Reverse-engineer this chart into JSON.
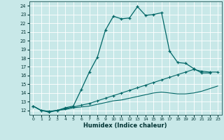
{
  "xlabel": "Humidex (Indice chaleur)",
  "background_color": "#c8e8e8",
  "grid_color": "#ffffff",
  "line_color": "#006666",
  "xlim": [
    -0.5,
    23.5
  ],
  "ylim": [
    11.5,
    24.5
  ],
  "yticks": [
    12,
    13,
    14,
    15,
    16,
    17,
    18,
    19,
    20,
    21,
    22,
    23,
    24
  ],
  "xticks": [
    0,
    1,
    2,
    3,
    4,
    5,
    6,
    7,
    8,
    9,
    10,
    11,
    12,
    13,
    14,
    15,
    16,
    17,
    18,
    19,
    20,
    21,
    22,
    23
  ],
  "line1_x": [
    0,
    1,
    2,
    3,
    4,
    5,
    6,
    7,
    8,
    9,
    10,
    11,
    12,
    13,
    14,
    15,
    16,
    17,
    18,
    19,
    20,
    21,
    22
  ],
  "line1_y": [
    12.5,
    12.0,
    11.8,
    12.0,
    12.3,
    12.5,
    14.4,
    16.4,
    18.1,
    21.2,
    22.8,
    22.5,
    22.6,
    23.9,
    22.9,
    23.0,
    23.2,
    18.8,
    17.5,
    17.4,
    16.8,
    16.3,
    16.3
  ],
  "line2_x": [
    0,
    1,
    2,
    3,
    4,
    5,
    6,
    7,
    8,
    9,
    10,
    11,
    12,
    13,
    14,
    15,
    16,
    17,
    18,
    19,
    20,
    21,
    22,
    23
  ],
  "line2_y": [
    12.5,
    12.0,
    11.9,
    12.0,
    12.2,
    12.4,
    12.6,
    12.8,
    13.1,
    13.4,
    13.7,
    14.0,
    14.3,
    14.6,
    14.9,
    15.2,
    15.5,
    15.8,
    16.1,
    16.4,
    16.7,
    16.5,
    16.4,
    16.4
  ],
  "line3_x": [
    0,
    1,
    2,
    3,
    4,
    5,
    6,
    7,
    8,
    9,
    10,
    11,
    12,
    13,
    14,
    15,
    16,
    17,
    18,
    19,
    20,
    21,
    22,
    23
  ],
  "line3_y": [
    12.5,
    12.0,
    11.9,
    12.0,
    12.1,
    12.3,
    12.4,
    12.5,
    12.7,
    12.9,
    13.1,
    13.2,
    13.4,
    13.6,
    13.8,
    14.0,
    14.1,
    14.0,
    13.9,
    13.9,
    14.0,
    14.2,
    14.5,
    14.8
  ]
}
